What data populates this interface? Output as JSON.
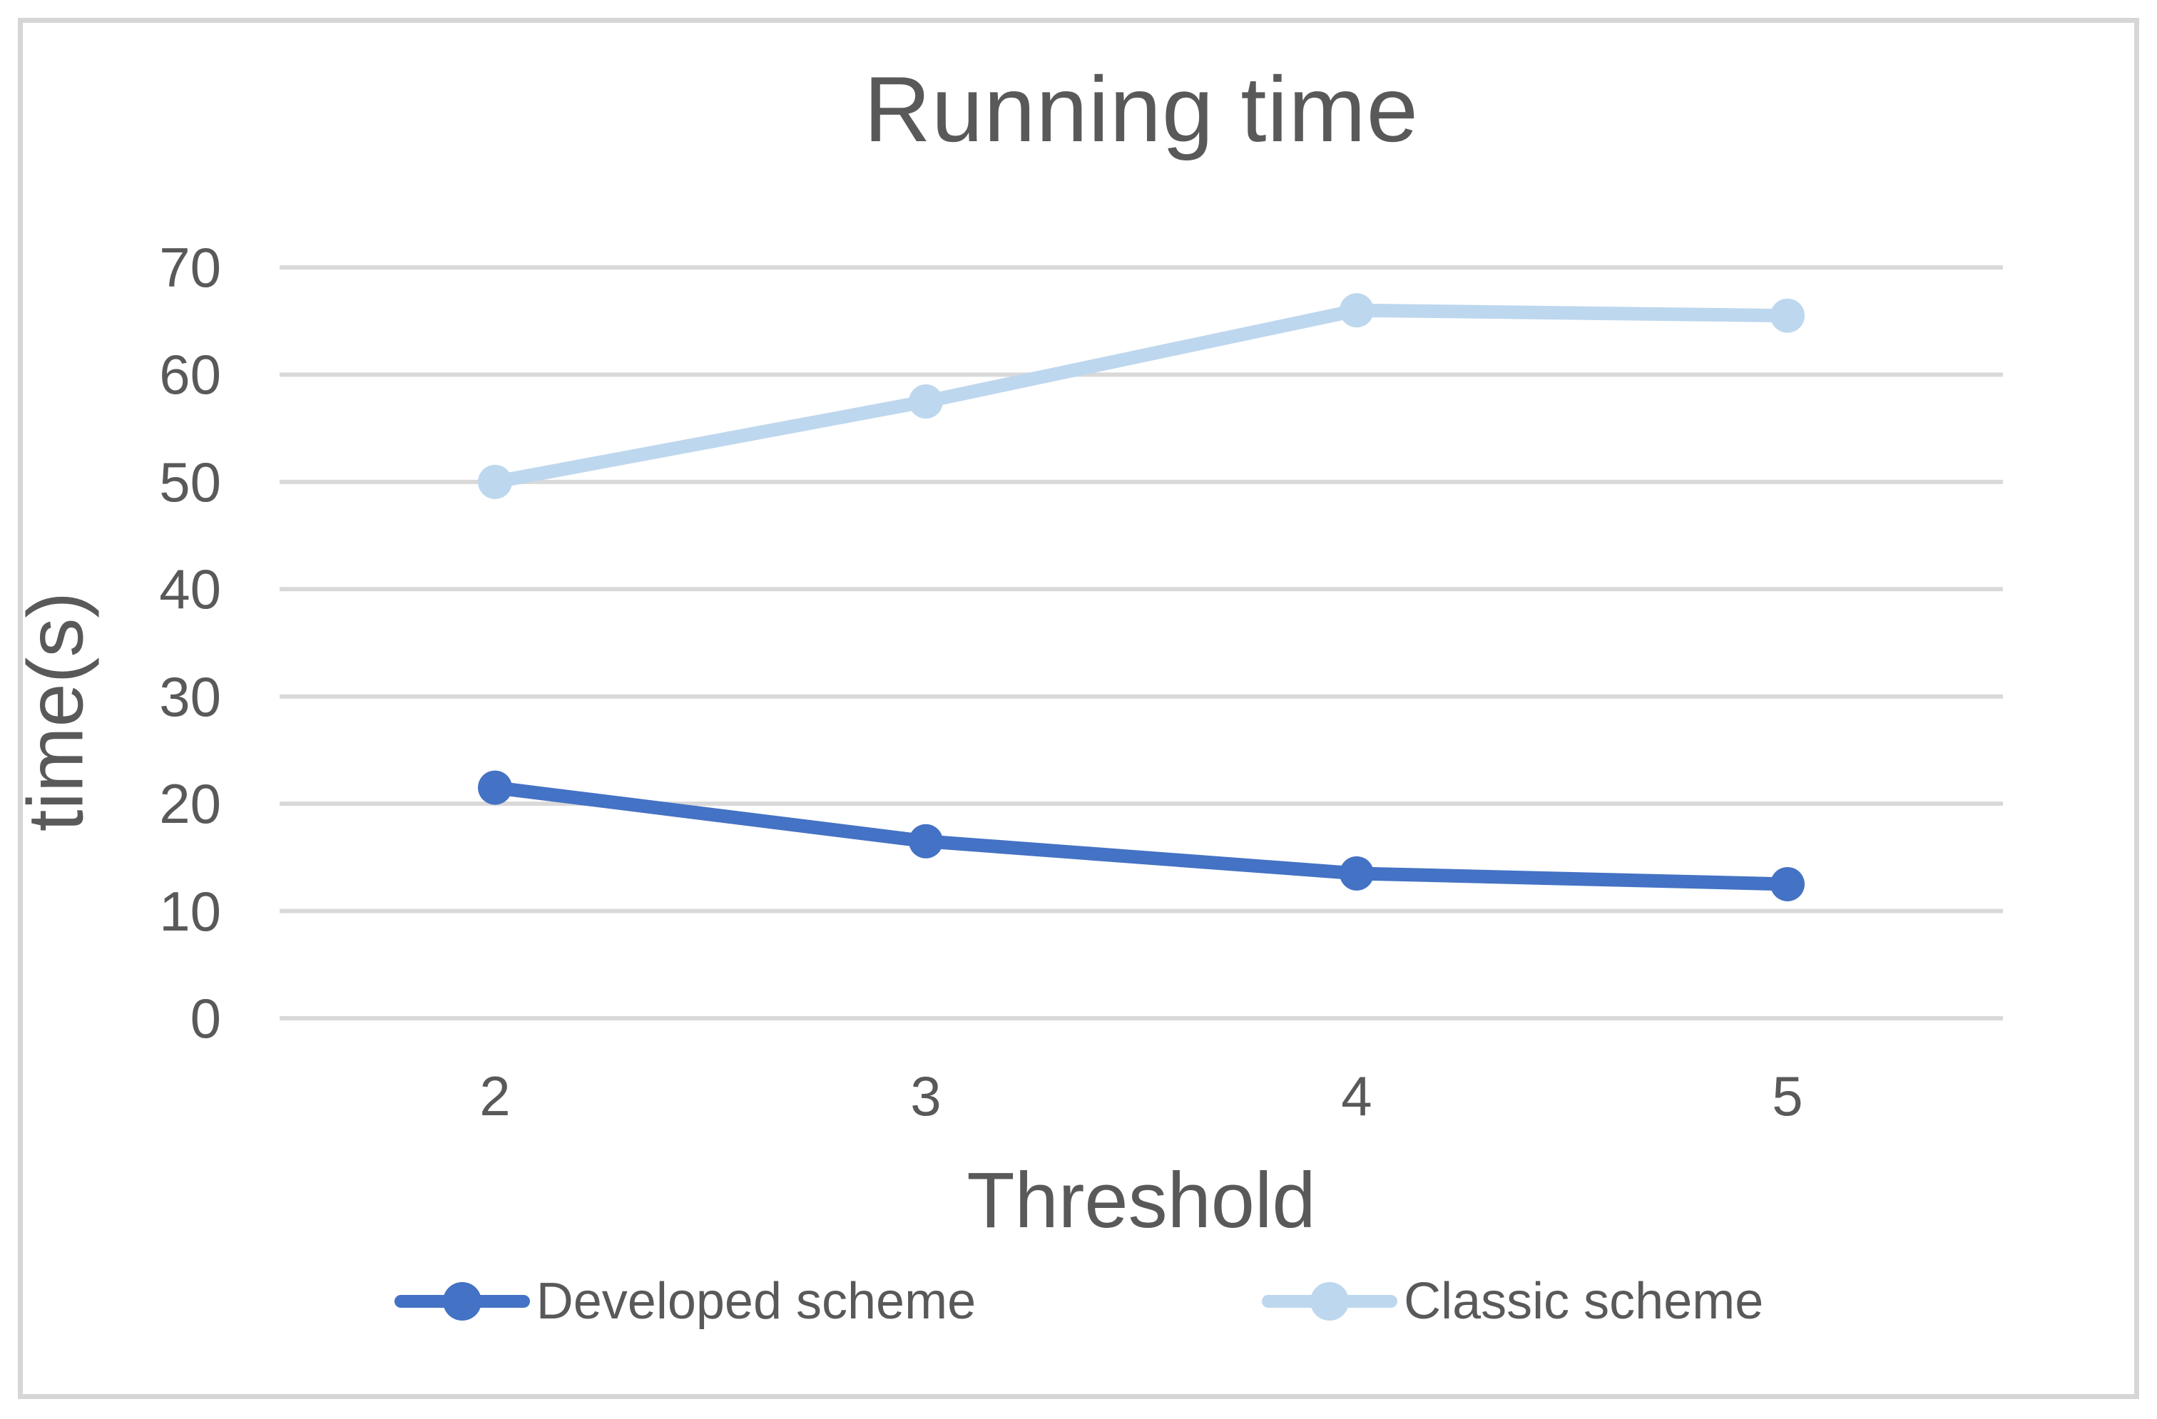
{
  "chart_data": {
    "type": "line",
    "title": "Running time",
    "xlabel": "Threshold",
    "ylabel": "time(s)",
    "categories": [
      "2",
      "3",
      "4",
      "5"
    ],
    "series": [
      {
        "name": "Developed scheme",
        "values": [
          21.5,
          16.5,
          13.5,
          12.5
        ],
        "color": "#4472C4"
      },
      {
        "name": "Classic scheme",
        "values": [
          50,
          57.5,
          66,
          65.5
        ],
        "color": "#BDD7EE"
      }
    ],
    "ylim": [
      0,
      70
    ],
    "yticks": [
      0,
      10,
      20,
      30,
      40,
      50,
      60,
      70
    ],
    "grid": true,
    "legend_position": "bottom",
    "grid_color": "#D9D9D9",
    "text_color": "#595959",
    "frame_border_color": "#D6D6D6",
    "background_color": "#FFFFFF"
  }
}
